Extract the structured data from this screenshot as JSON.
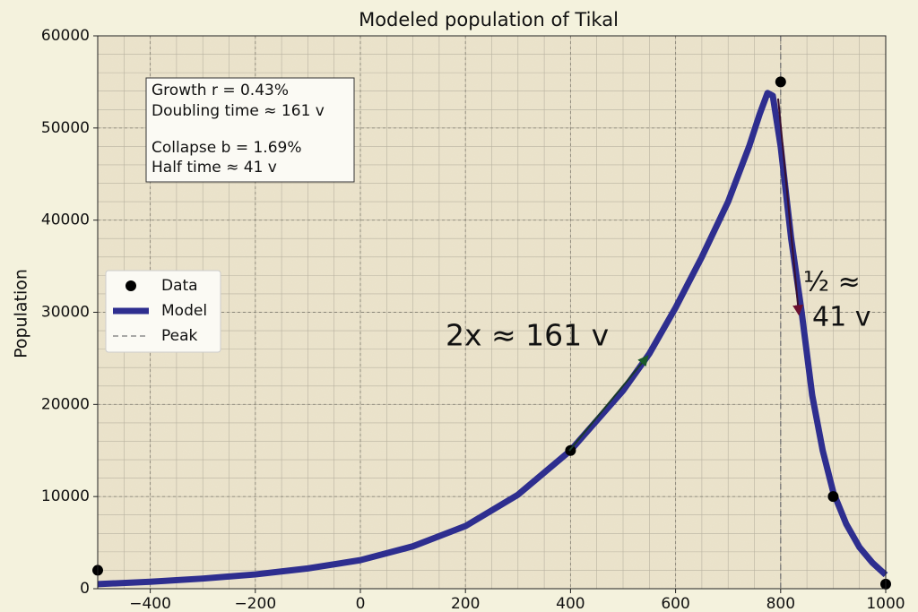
{
  "chart_data": {
    "type": "line",
    "title": "Modeled population of Tikal",
    "y_label": "Population",
    "xlim": [
      -500,
      1000
    ],
    "ylim": [
      0,
      60000
    ],
    "xticks": [
      {
        "value": -400,
        "label": "−400"
      },
      {
        "value": -200,
        "label": "−200"
      },
      0,
      200,
      400,
      600,
      800,
      1000
    ],
    "yticks": [
      0,
      10000,
      20000,
      30000,
      40000,
      50000,
      60000
    ],
    "grid": true,
    "legend": "center left",
    "series": [
      {
        "name": "Data",
        "kind": "scatter",
        "color": "#000000",
        "x": [
          -500,
          400,
          800,
          900,
          1000
        ],
        "values": [
          2000,
          15000,
          55000,
          10000,
          500
        ]
      },
      {
        "name": "Model",
        "kind": "line",
        "color": "#2e2e8f",
        "x": [
          -500,
          -400,
          -300,
          -200,
          -100,
          0,
          100,
          200,
          300,
          400,
          500,
          550,
          600,
          650,
          700,
          740,
          760,
          775,
          785,
          800,
          820,
          840,
          860,
          880,
          900,
          925,
          950,
          975,
          1000
        ],
        "values": [
          500,
          750,
          1100,
          1550,
          2200,
          3100,
          4600,
          6800,
          10200,
          15000,
          21500,
          25500,
          30500,
          36000,
          42000,
          48000,
          51500,
          53800,
          53500,
          48000,
          38000,
          30000,
          21000,
          15000,
          10500,
          7000,
          4500,
          2800,
          1500
        ]
      },
      {
        "name": "Peak",
        "kind": "vline",
        "color": "#777777",
        "x": [
          800
        ]
      }
    ],
    "text_box": [
      "Growth r = 0.43%",
      "Doubling time ≈ 161 v",
      "Collapse b = 1.69%",
      "Half time ≈ 41 v"
    ],
    "annotations": [
      {
        "text": "2x ≈ 161 v",
        "color": "#138a13"
      },
      {
        "text": "½ ≈",
        "color": "#ee1111"
      },
      {
        "text": "41 v",
        "color": "#ee1111"
      }
    ]
  }
}
